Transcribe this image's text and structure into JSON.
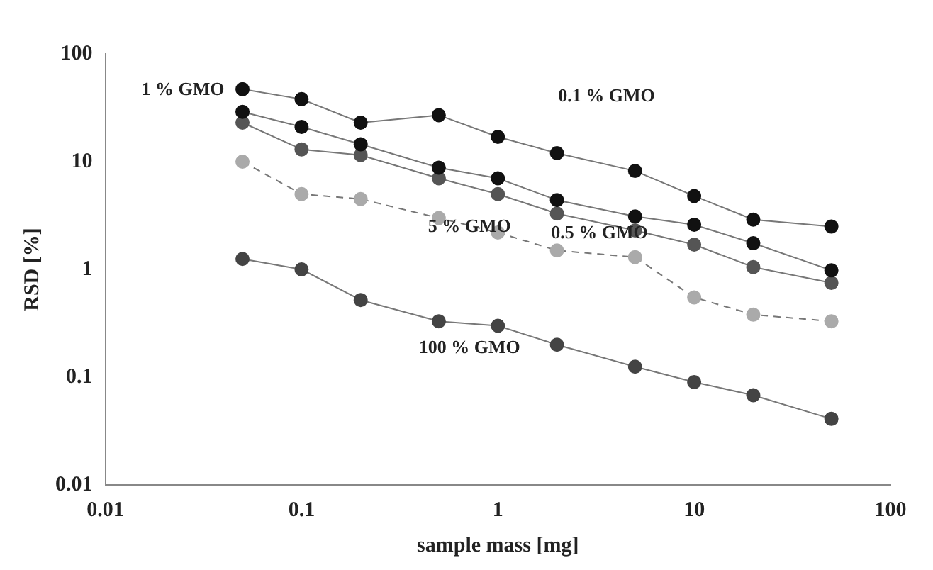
{
  "chart_data": {
    "type": "line",
    "xlabel": "sample mass [mg]",
    "ylabel": "RSD [%]",
    "log": "xy",
    "grid": false,
    "legend": false,
    "marker": "circle",
    "xlim": [
      0.01,
      100
    ],
    "xticks": [
      0.01,
      0.1,
      1,
      10,
      100
    ],
    "ylim": [
      0.01,
      100
    ],
    "yticks": [
      0.01,
      0.1,
      1,
      10,
      100
    ],
    "x": [
      0.05,
      0.1,
      0.2,
      0.5,
      1,
      2,
      5,
      10,
      20,
      50
    ],
    "series": [
      {
        "name": "0.1 % GMO",
        "color": "#111111",
        "values": [
          47,
          38,
          23,
          27,
          17,
          12,
          8.2,
          4.8,
          2.9,
          2.5
        ]
      },
      {
        "name": "1 % GMO",
        "color": "#111111",
        "values": [
          29,
          21,
          14.5,
          8.8,
          7,
          4.4,
          3.1,
          2.6,
          1.75,
          0.98
        ]
      },
      {
        "name": "0.5 % GMO",
        "color": "#555555",
        "values": [
          23,
          13,
          11.5,
          7,
          5,
          3.3,
          2.3,
          1.7,
          1.05,
          0.75
        ]
      },
      {
        "name": "5 % GMO",
        "color": "#aaaaaa",
        "line_style": "dashed",
        "values": [
          10,
          5,
          4.5,
          3,
          2.2,
          1.5,
          1.3,
          0.55,
          0.38,
          0.33
        ]
      },
      {
        "name": "100 % GMO",
        "color": "#444444",
        "values": [
          1.25,
          1.0,
          0.52,
          0.33,
          0.3,
          0.2,
          0.125,
          0.09,
          0.068,
          0.041
        ]
      }
    ]
  }
}
